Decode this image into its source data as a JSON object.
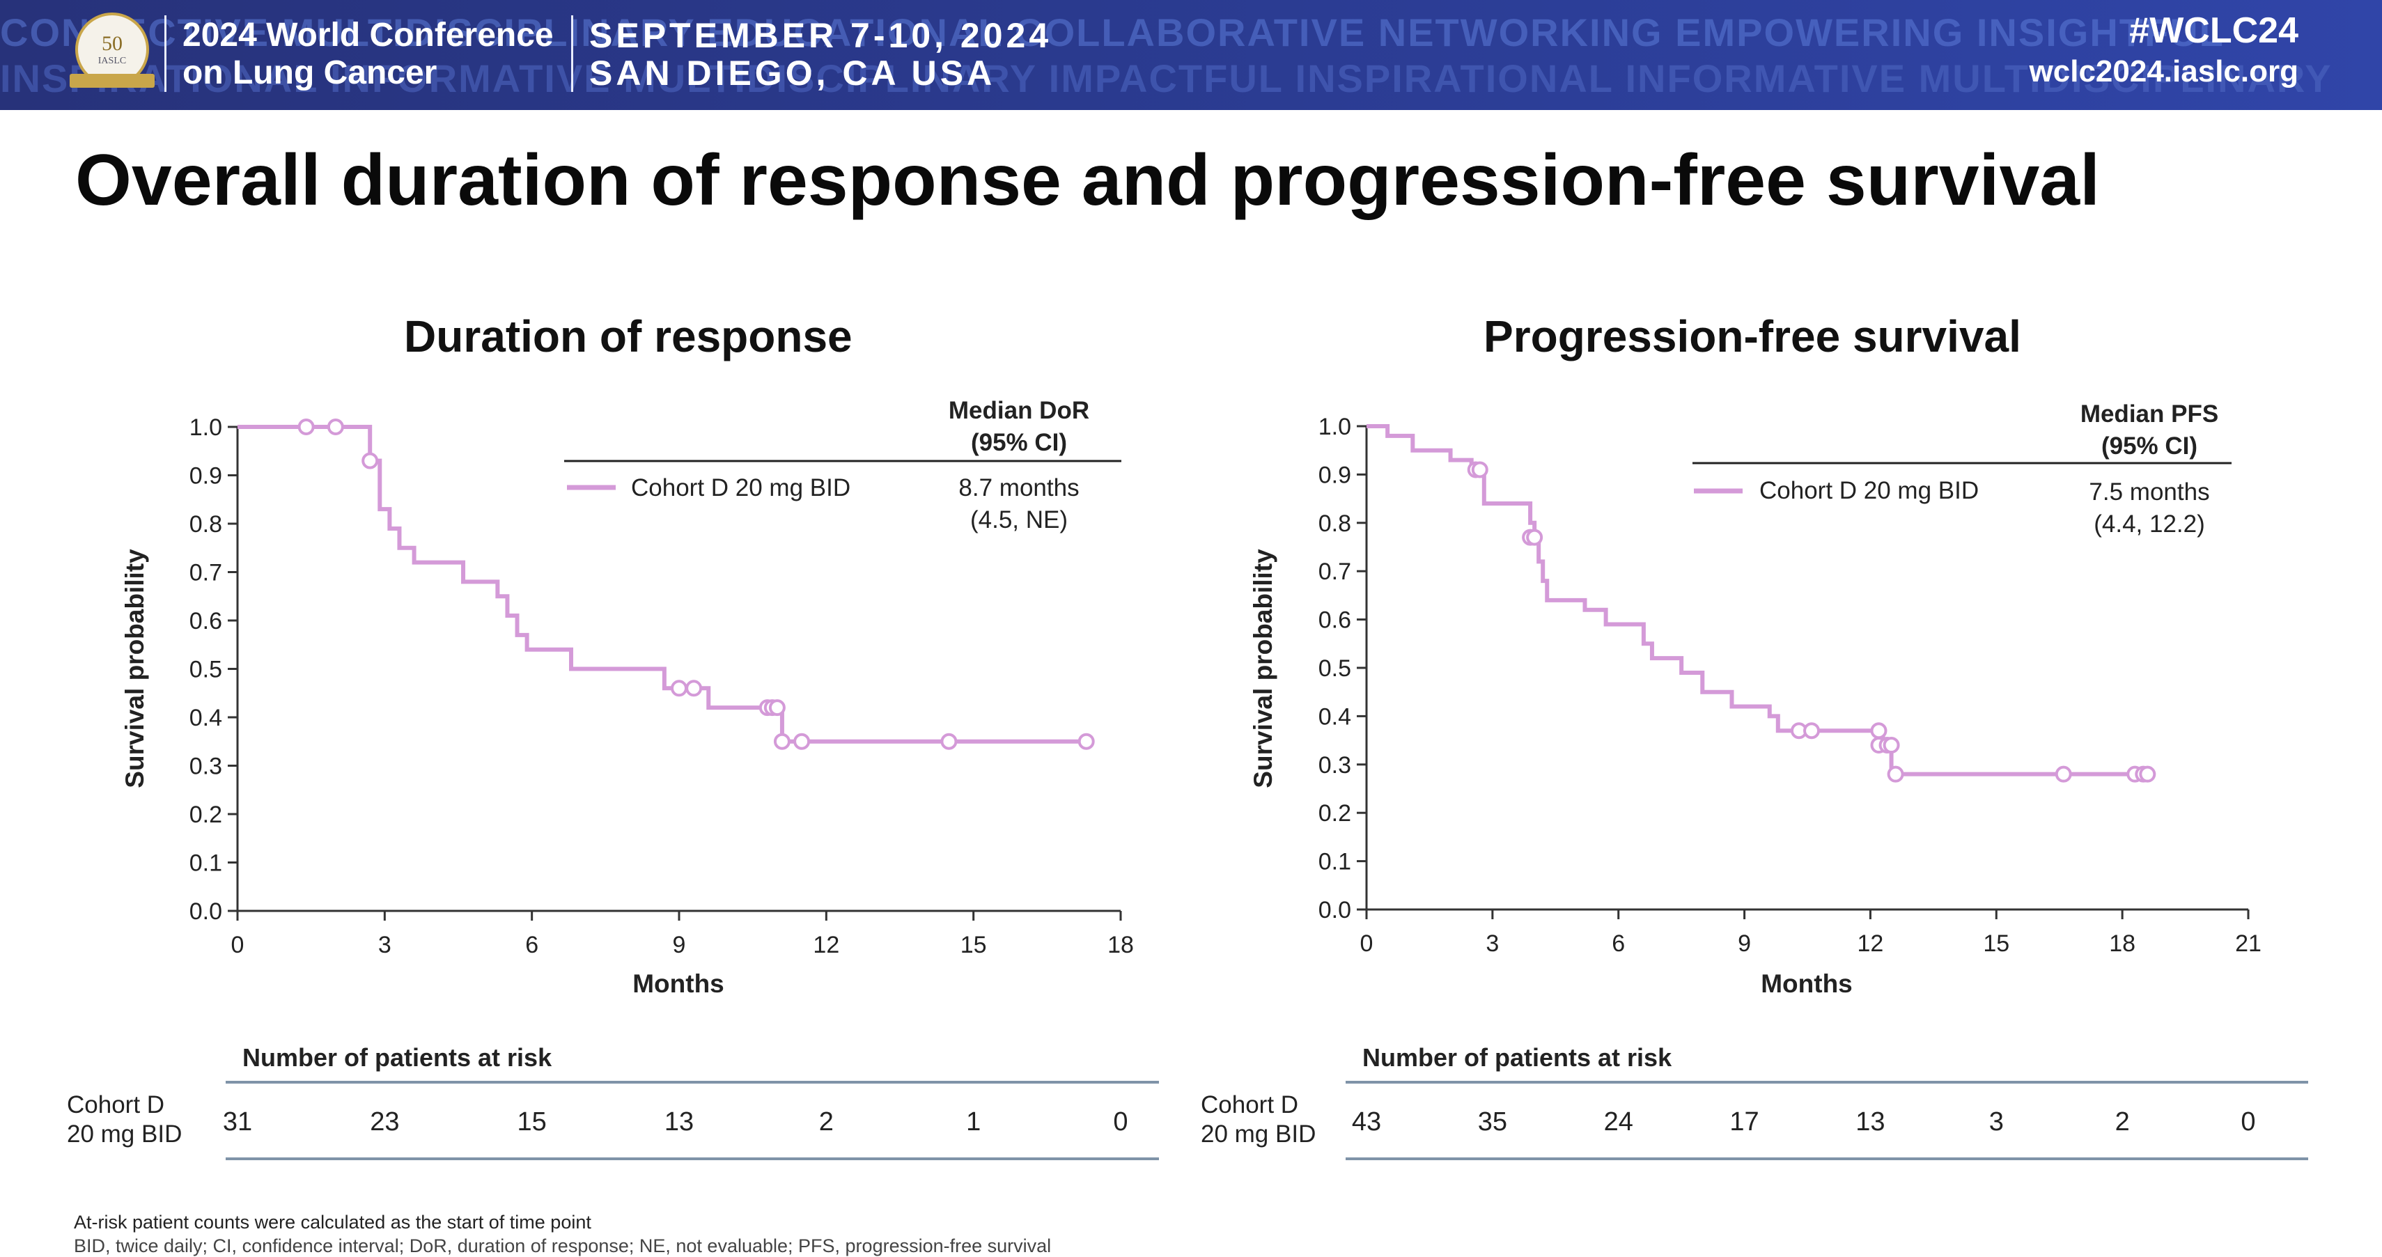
{
  "header": {
    "watermark_line1": "CONNECTIVE MULTIDISCIPLINARY EDUCATIONAL COLLABORATIVE NETWORKING EMPOWERING INSIGHTFUL",
    "watermark_line2": "INSPIRATIONAL INFORMATIVE MULTIDISCIPLINARY IMPACTFUL INSPIRATIONAL INFORMATIVE MULTIDISCIPLINARY",
    "logo_number": "50",
    "logo_text": "IASLC",
    "conference_line1": "2024 World Conference",
    "conference_line2": "on Lung Cancer",
    "dates_line1": "SEPTEMBER 7-10, 2024",
    "dates_line2": "SAN DIEGO, CA USA",
    "hashtag": "#WCLC24",
    "website": "wclc2024.iaslc.org",
    "colors": {
      "banner": "#2a3a8e",
      "logo_gold": "#c9a64a"
    }
  },
  "slide_title": "Overall duration of response and progression-free survival",
  "chart_data": [
    {
      "type": "line",
      "step": true,
      "title": "Duration of response",
      "xlabel": "Months",
      "ylabel": "Survival probability",
      "xlim": [
        0,
        18
      ],
      "ylim": [
        0,
        1
      ],
      "xticks": [
        "0",
        "3",
        "6",
        "9",
        "12",
        "15",
        "18"
      ],
      "yticks": [
        "0.0",
        "0.1",
        "0.2",
        "0.3",
        "0.4",
        "0.5",
        "0.6",
        "0.7",
        "0.8",
        "0.9",
        "1.0"
      ],
      "legend_position": "top-right",
      "legend_header_line1": "Median DoR",
      "legend_header_line2": "(95% CI)",
      "series": [
        {
          "name": "Cohort D 20 mg BID",
          "color": "#d49ad8",
          "median_line1": "8.7 months",
          "median_line2": "(4.5, NE)",
          "steps": [
            [
              0,
              1.0
            ],
            [
              2.7,
              0.93
            ],
            [
              2.9,
              0.83
            ],
            [
              3.1,
              0.79
            ],
            [
              3.3,
              0.75
            ],
            [
              3.6,
              0.72
            ],
            [
              4.6,
              0.68
            ],
            [
              5.3,
              0.65
            ],
            [
              5.5,
              0.61
            ],
            [
              5.7,
              0.57
            ],
            [
              5.9,
              0.54
            ],
            [
              6.8,
              0.5
            ],
            [
              8.7,
              0.46
            ],
            [
              9.6,
              0.42
            ],
            [
              11.1,
              0.35
            ],
            [
              17.3,
              0.35
            ]
          ],
          "censored": [
            [
              1.4,
              1.0
            ],
            [
              2.0,
              1.0
            ],
            [
              2.7,
              0.93
            ],
            [
              9.0,
              0.46
            ],
            [
              9.3,
              0.46
            ],
            [
              10.8,
              0.42
            ],
            [
              10.9,
              0.42
            ],
            [
              11.0,
              0.42
            ],
            [
              11.1,
              0.35
            ],
            [
              11.5,
              0.35
            ],
            [
              14.5,
              0.35
            ],
            [
              17.3,
              0.35
            ]
          ]
        }
      ],
      "risk_table": {
        "heading": "Number of patients at risk",
        "row_label_line1": "Cohort D",
        "row_label_line2": "20 mg BID",
        "values": [
          "31",
          "23",
          "15",
          "13",
          "2",
          "1",
          "0"
        ]
      }
    },
    {
      "type": "line",
      "step": true,
      "title": "Progression-free survival",
      "xlabel": "Months",
      "ylabel": "Survival probability",
      "xlim": [
        0,
        21
      ],
      "ylim": [
        0,
        1
      ],
      "xticks": [
        "0",
        "3",
        "6",
        "9",
        "12",
        "15",
        "18",
        "21"
      ],
      "yticks": [
        "0.0",
        "0.1",
        "0.2",
        "0.3",
        "0.4",
        "0.5",
        "0.6",
        "0.7",
        "0.8",
        "0.9",
        "1.0"
      ],
      "legend_position": "top-right",
      "legend_header_line1": "Median PFS",
      "legend_header_line2": "(95% CI)",
      "series": [
        {
          "name": "Cohort D 20 mg BID",
          "color": "#d49ad8",
          "median_line1": "7.5 months",
          "median_line2": "(4.4, 12.2)",
          "steps": [
            [
              0,
              1.0
            ],
            [
              0.5,
              0.98
            ],
            [
              1.1,
              0.95
            ],
            [
              2.0,
              0.93
            ],
            [
              2.5,
              0.91
            ],
            [
              2.8,
              0.84
            ],
            [
              3.9,
              0.8
            ],
            [
              4.0,
              0.77
            ],
            [
              4.1,
              0.72
            ],
            [
              4.2,
              0.68
            ],
            [
              4.3,
              0.64
            ],
            [
              5.2,
              0.62
            ],
            [
              5.7,
              0.59
            ],
            [
              6.6,
              0.55
            ],
            [
              6.8,
              0.52
            ],
            [
              7.5,
              0.49
            ],
            [
              8.0,
              0.45
            ],
            [
              8.7,
              0.42
            ],
            [
              9.6,
              0.4
            ],
            [
              9.8,
              0.37
            ],
            [
              12.3,
              0.34
            ],
            [
              12.5,
              0.28
            ],
            [
              18.6,
              0.28
            ]
          ],
          "censored": [
            [
              2.6,
              0.91
            ],
            [
              2.7,
              0.91
            ],
            [
              3.9,
              0.77
            ],
            [
              4.0,
              0.77
            ],
            [
              10.3,
              0.37
            ],
            [
              10.6,
              0.37
            ],
            [
              12.2,
              0.37
            ],
            [
              12.2,
              0.34
            ],
            [
              12.4,
              0.34
            ],
            [
              12.5,
              0.34
            ],
            [
              12.6,
              0.28
            ],
            [
              16.6,
              0.28
            ],
            [
              18.3,
              0.28
            ],
            [
              18.5,
              0.28
            ],
            [
              18.6,
              0.28
            ]
          ]
        }
      ],
      "risk_table": {
        "heading": "Number of patients at risk",
        "row_label_line1": "Cohort D",
        "row_label_line2": "20 mg BID",
        "values": [
          "43",
          "35",
          "24",
          "17",
          "13",
          "3",
          "2",
          "0"
        ]
      }
    }
  ],
  "footnote": "At-risk patient counts were calculated as the start of time point",
  "footnote2": "BID, twice daily; CI, confidence interval; DoR, duration of response; NE, not evaluable; PFS, progression-free survival"
}
